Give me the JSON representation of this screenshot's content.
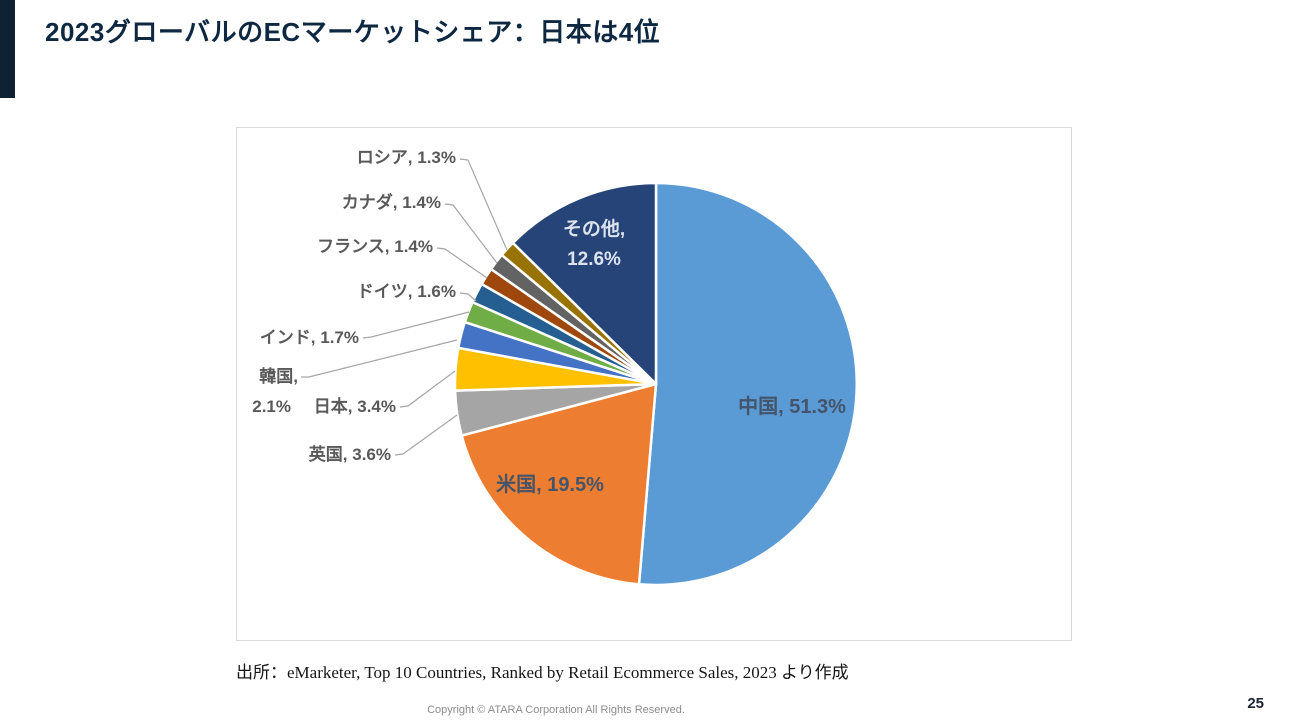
{
  "slide": {
    "title": "2023グローバルのECマーケットシェア：日本は4位",
    "source": "出所：eMarketer, Top 10 Countries, Ranked by Retail Ecommerce Sales, 2023 より作成",
    "footer": "Copyright © ATARA Corporation All Rights Reserved.",
    "page_number": "25"
  },
  "theme": {
    "accent_bar_color": "#0E2233",
    "title_color": "#0E2841",
    "outside_label_color": "#595959",
    "inside_label_color": "#44546A",
    "others_label_color": "#DCE3EF",
    "leader_line_color": "#A6A6A6",
    "frame_border_color": "#D9D9D9"
  },
  "chart_data": {
    "type": "pie",
    "title": "",
    "unit": "%",
    "start_angle_deg": 0,
    "direction": "clockwise",
    "legend": "none",
    "data_label_format": "label, value%",
    "series": [
      {
        "label": "中国",
        "value": 51.3,
        "color": "#5B9BD5"
      },
      {
        "label": "米国",
        "value": 19.5,
        "color": "#ED7D31"
      },
      {
        "label": "英国",
        "value": 3.6,
        "color": "#A5A5A5"
      },
      {
        "label": "日本",
        "value": 3.4,
        "color": "#FFC000"
      },
      {
        "label": "韓国",
        "value": 2.1,
        "color": "#4472C4"
      },
      {
        "label": "インド",
        "value": 1.7,
        "color": "#70AD47"
      },
      {
        "label": "ドイツ",
        "value": 1.6,
        "color": "#255E91"
      },
      {
        "label": "フランス",
        "value": 1.4,
        "color": "#9E480E"
      },
      {
        "label": "カナダ",
        "value": 1.4,
        "color": "#636363"
      },
      {
        "label": "ロシア",
        "value": 1.3,
        "color": "#997300"
      },
      {
        "label": "その他",
        "value": 12.6,
        "color": "#264478"
      }
    ]
  }
}
